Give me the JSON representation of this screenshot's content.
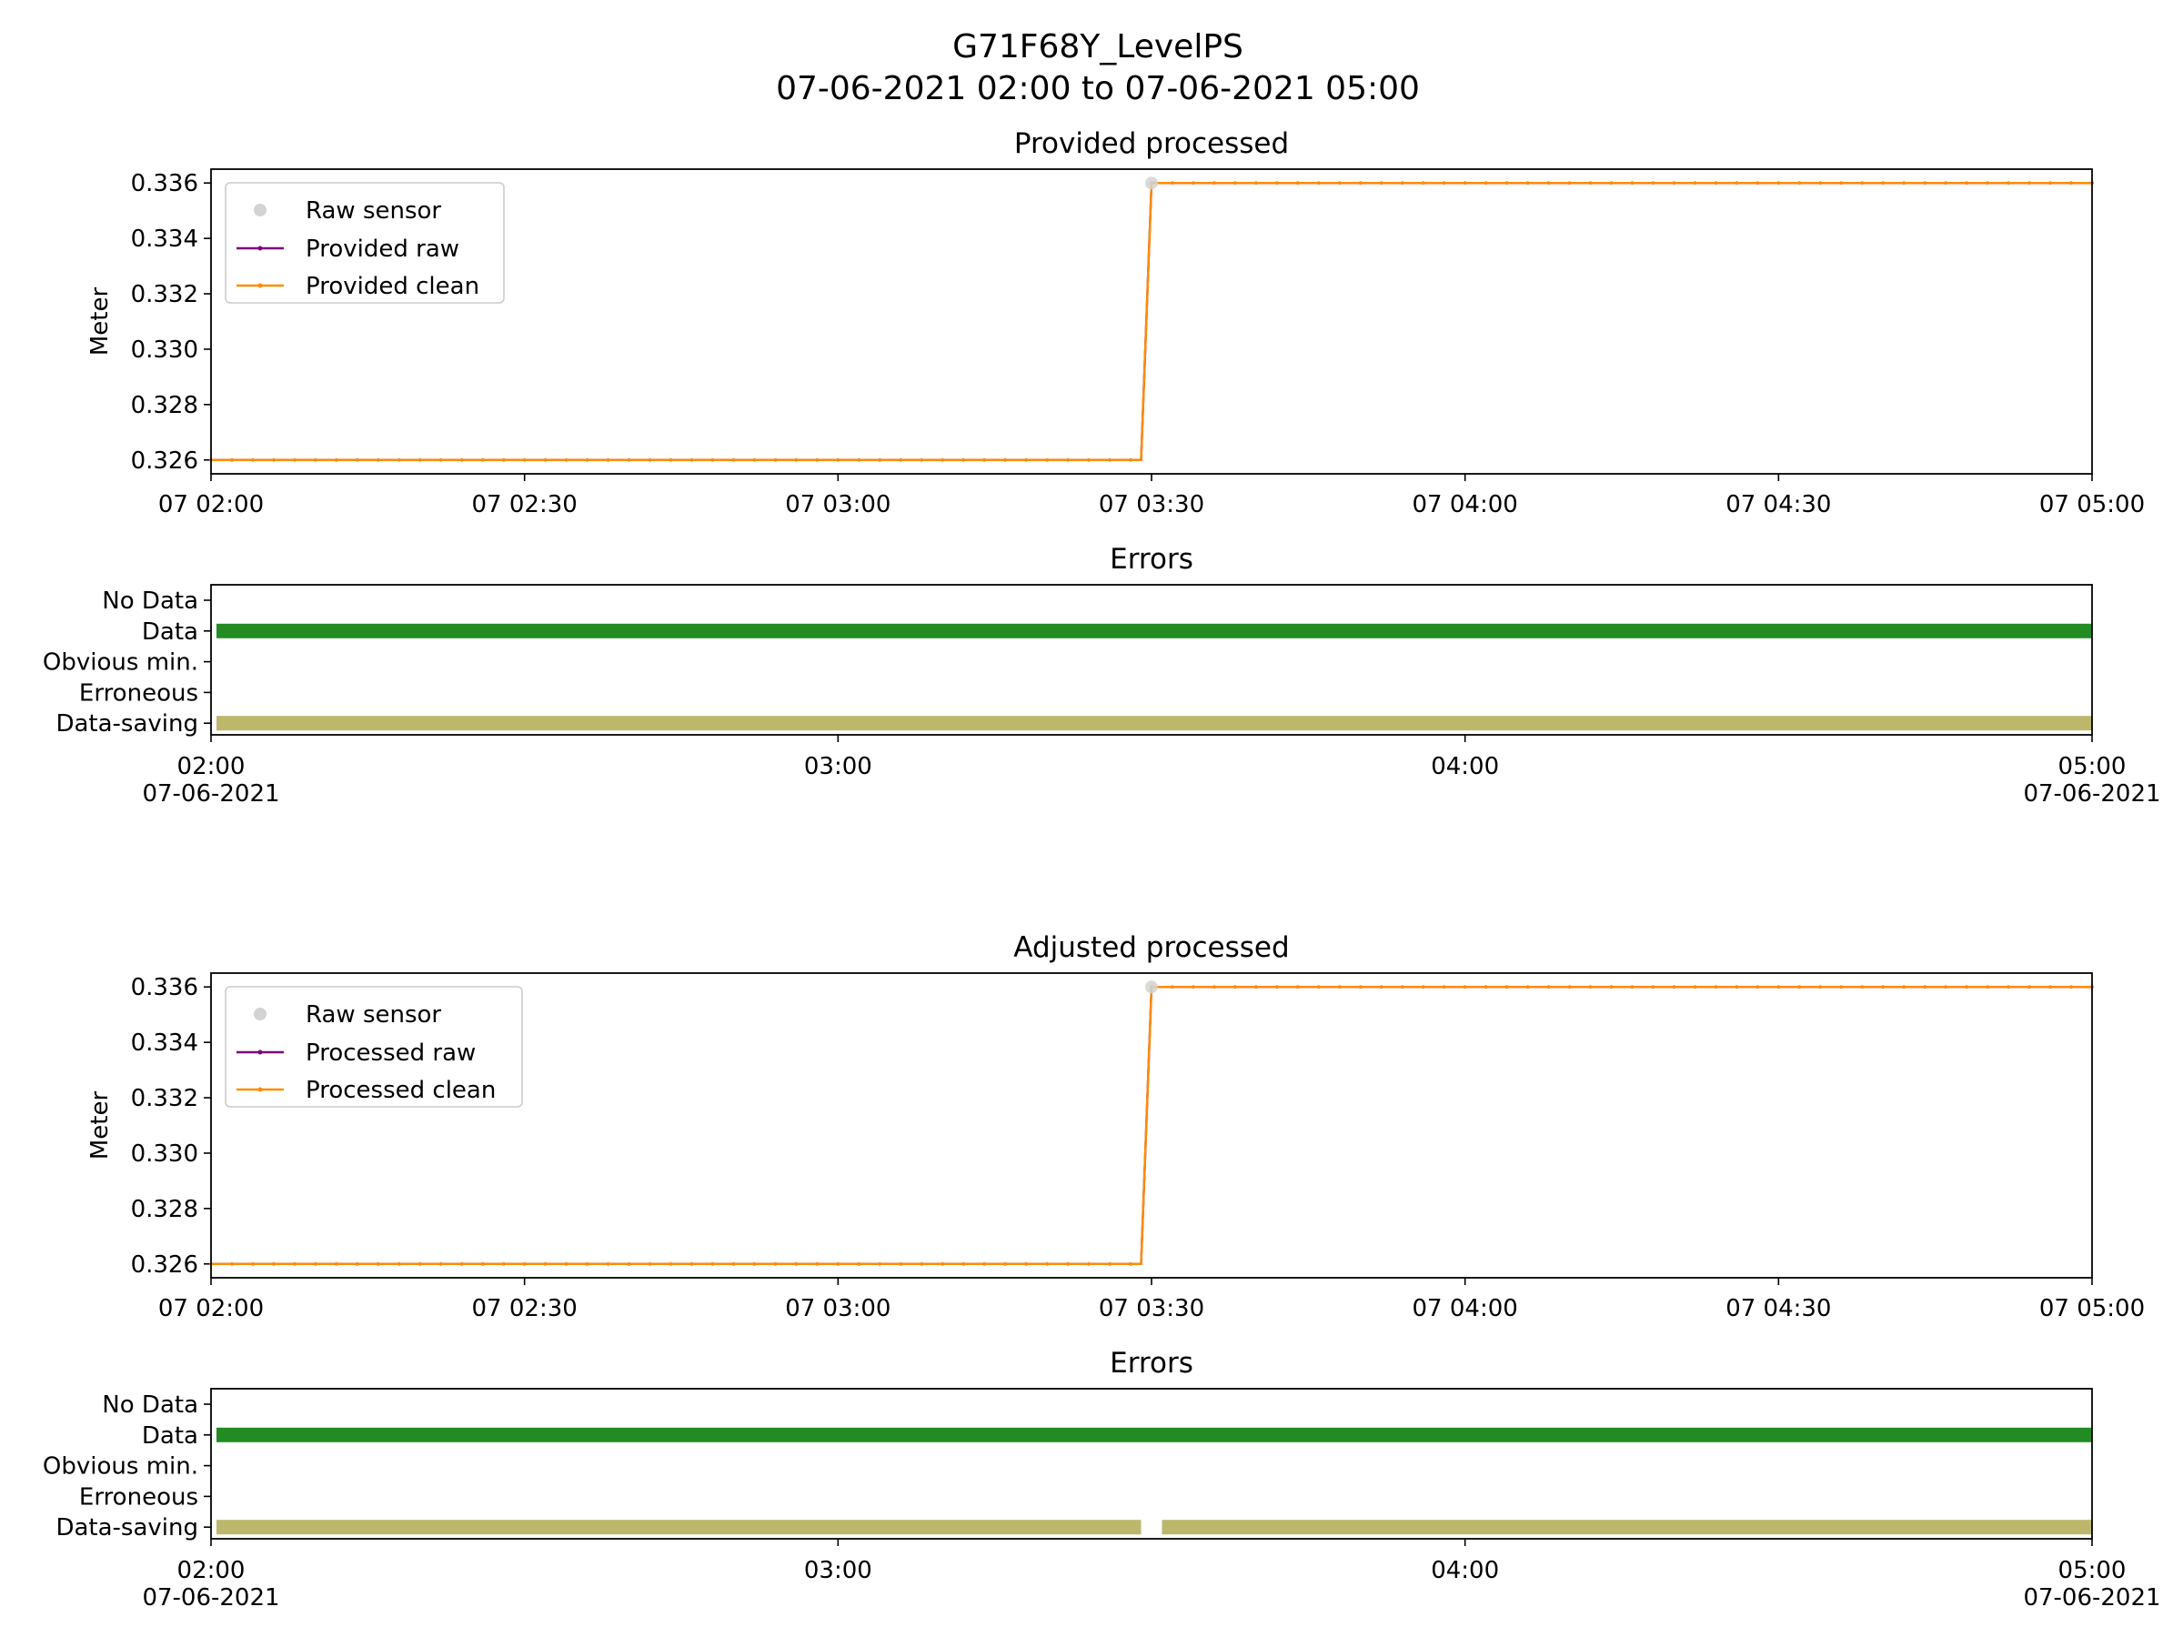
{
  "figure": {
    "title": "G71F68Y_LevelPS",
    "subtitle": "07-06-2021 02:00 to 07-06-2021 05:00",
    "colors": {
      "raw_sensor": "#d3d3d3",
      "raw_line": "#800080",
      "clean_line": "#ff8c00",
      "data_bar": "#228b22",
      "saving_bar": "#bdb76b"
    }
  },
  "chart_data": [
    {
      "type": "line",
      "title": "Provided processed",
      "ylabel": "Meter",
      "xlabel": "",
      "xlim": [
        "2021-06-07 02:00",
        "2021-06-07 05:00"
      ],
      "ylim": [
        0.3255,
        0.3365
      ],
      "yticks": [
        "0.326",
        "0.328",
        "0.330",
        "0.332",
        "0.334",
        "0.336"
      ],
      "xticks": [
        "07 02:00",
        "07 02:30",
        "07 03:00",
        "07 03:30",
        "07 04:00",
        "07 04:30",
        "07 05:00"
      ],
      "legend_position": "upper-left",
      "legend": [
        "Raw sensor",
        "Provided raw",
        "Provided clean"
      ],
      "series": [
        {
          "name": "Raw sensor",
          "points": [
            [
              "2021-06-07 03:30",
              0.336
            ]
          ]
        },
        {
          "name": "Provided raw",
          "segments": [
            {
              "from": "2021-06-07 02:00",
              "to": "2021-06-07 03:29",
              "value": 0.326
            },
            {
              "from": "2021-06-07 03:30",
              "to": "2021-06-07 05:00",
              "value": 0.336
            }
          ]
        },
        {
          "name": "Provided clean",
          "segments": [
            {
              "from": "2021-06-07 02:00",
              "to": "2021-06-07 03:29",
              "value": 0.326
            },
            {
              "from": "2021-06-07 03:30",
              "to": "2021-06-07 05:00",
              "value": 0.336
            }
          ]
        }
      ]
    },
    {
      "type": "bar",
      "title": "Errors",
      "categories": [
        "No Data",
        "Data",
        "Obvious min.",
        "Erroneous",
        "Data-saving"
      ],
      "xticks": [
        [
          "02:00",
          "07-06-2021"
        ],
        [
          "03:00",
          ""
        ],
        [
          "04:00",
          ""
        ],
        [
          "05:00",
          "07-06-2021"
        ]
      ],
      "intervals": [
        {
          "category": "Data",
          "from": "2021-06-07 02:00",
          "to": "2021-06-07 05:00"
        },
        {
          "category": "Data-saving",
          "from": "2021-06-07 02:00",
          "to": "2021-06-07 05:00"
        }
      ]
    },
    {
      "type": "line",
      "title": "Adjusted processed",
      "ylabel": "Meter",
      "xlabel": "",
      "xlim": [
        "2021-06-07 02:00",
        "2021-06-07 05:00"
      ],
      "ylim": [
        0.3255,
        0.3365
      ],
      "yticks": [
        "0.326",
        "0.328",
        "0.330",
        "0.332",
        "0.334",
        "0.336"
      ],
      "xticks": [
        "07 02:00",
        "07 02:30",
        "07 03:00",
        "07 03:30",
        "07 04:00",
        "07 04:30",
        "07 05:00"
      ],
      "legend_position": "upper-left",
      "legend": [
        "Raw sensor",
        "Processed raw",
        "Processed clean"
      ],
      "series": [
        {
          "name": "Raw sensor",
          "points": [
            [
              "2021-06-07 03:30",
              0.336
            ]
          ]
        },
        {
          "name": "Processed raw",
          "segments": [
            {
              "from": "2021-06-07 02:00",
              "to": "2021-06-07 03:29",
              "value": 0.326
            },
            {
              "from": "2021-06-07 03:30",
              "to": "2021-06-07 05:00",
              "value": 0.336
            }
          ]
        },
        {
          "name": "Processed clean",
          "segments": [
            {
              "from": "2021-06-07 02:00",
              "to": "2021-06-07 03:29",
              "value": 0.326
            },
            {
              "from": "2021-06-07 03:30",
              "to": "2021-06-07 05:00",
              "value": 0.336
            }
          ]
        }
      ]
    },
    {
      "type": "bar",
      "title": "Errors",
      "categories": [
        "No Data",
        "Data",
        "Obvious min.",
        "Erroneous",
        "Data-saving"
      ],
      "xticks": [
        [
          "02:00",
          "07-06-2021"
        ],
        [
          "03:00",
          ""
        ],
        [
          "04:00",
          ""
        ],
        [
          "05:00",
          "07-06-2021"
        ]
      ],
      "intervals": [
        {
          "category": "Data",
          "from": "2021-06-07 02:00",
          "to": "2021-06-07 05:00"
        },
        {
          "category": "Data-saving",
          "from": "2021-06-07 02:00",
          "to": "2021-06-07 03:29"
        },
        {
          "category": "Data-saving",
          "from": "2021-06-07 03:31",
          "to": "2021-06-07 05:00"
        }
      ]
    }
  ]
}
